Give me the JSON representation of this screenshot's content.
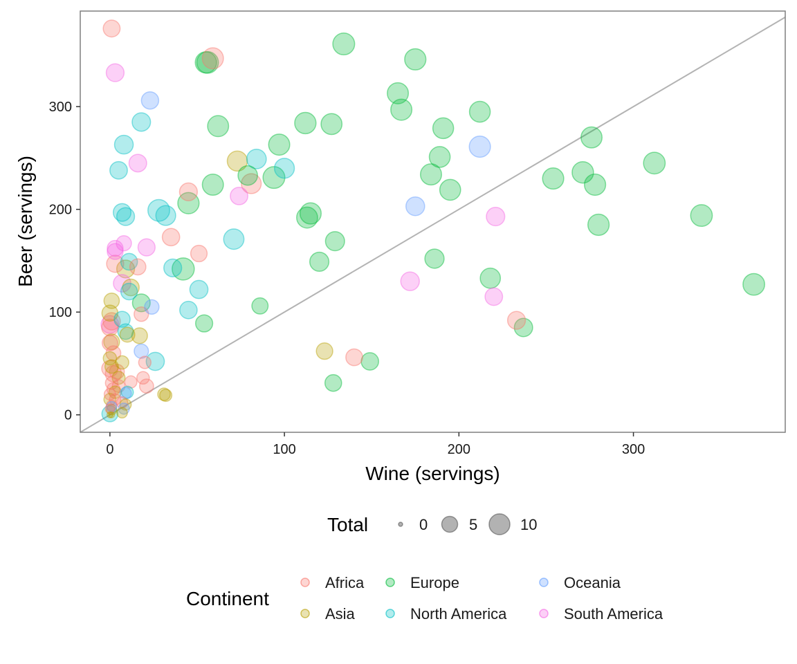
{
  "chart_data": {
    "type": "scatter",
    "title": "",
    "xlabel": "Wine (servings)",
    "ylabel": "Beer (servings)",
    "xlim": [
      -17,
      387
    ],
    "ylim": [
      -17,
      393
    ],
    "x_ticks": [
      0,
      100,
      200,
      300
    ],
    "y_ticks": [
      0,
      100,
      200,
      300
    ],
    "grid": false,
    "reference_line": {
      "slope": 1,
      "intercept": 0,
      "color": "#b3b3b3"
    },
    "legend_position": "bottom",
    "size_legend": {
      "title": "Total",
      "values": [
        0,
        5,
        10
      ]
    },
    "color_legend": {
      "title": "Continent"
    },
    "series": [
      {
        "name": "Africa",
        "color": "#F8766D",
        "points": [
          {
            "x": 1,
            "y": 376,
            "total": 5.8
          },
          {
            "x": 59,
            "y": 347,
            "total": 10.3
          },
          {
            "x": 45,
            "y": 217,
            "total": 6.7
          },
          {
            "x": 81,
            "y": 225,
            "total": 8.9
          },
          {
            "x": 35,
            "y": 173,
            "total": 6.3
          },
          {
            "x": 51,
            "y": 157,
            "total": 5.4
          },
          {
            "x": 16,
            "y": 144,
            "total": 5.1
          },
          {
            "x": 18,
            "y": 98,
            "total": 3.8
          },
          {
            "x": 233,
            "y": 92,
            "total": 6.7
          },
          {
            "x": 140,
            "y": 56,
            "total": 5.7
          },
          {
            "x": 20,
            "y": 51,
            "total": 2.4
          },
          {
            "x": 19,
            "y": 36,
            "total": 2.5
          },
          {
            "x": 21,
            "y": 28,
            "total": 3.5
          },
          {
            "x": 12,
            "y": 32,
            "total": 2.3
          },
          {
            "x": 3,
            "y": 147,
            "total": 6.0
          },
          {
            "x": 1,
            "y": 91,
            "total": 6.2
          },
          {
            "x": 0,
            "y": 85,
            "total": 5.5
          },
          {
            "x": 0,
            "y": 45,
            "total": 5.3
          },
          {
            "x": 2,
            "y": 40,
            "total": 5.2
          },
          {
            "x": 4,
            "y": 42,
            "total": 4.1
          },
          {
            "x": 1,
            "y": 31,
            "total": 2.5
          },
          {
            "x": 2,
            "y": 25,
            "total": 2.8
          },
          {
            "x": 0,
            "y": 20,
            "total": 1.9
          },
          {
            "x": 3,
            "y": 15,
            "total": 1.9
          },
          {
            "x": 1,
            "y": 9,
            "total": 1.5
          },
          {
            "x": 0,
            "y": 6,
            "total": 1.0
          },
          {
            "x": 5,
            "y": 28,
            "total": 2.6
          },
          {
            "x": 7,
            "y": 12,
            "total": 1.8
          },
          {
            "x": 2,
            "y": 60,
            "total": 4.0
          },
          {
            "x": 0,
            "y": 70,
            "total": 4.6
          }
        ]
      },
      {
        "name": "Asia",
        "color": "#B79F00",
        "points": [
          {
            "x": 73,
            "y": 247,
            "total": 9.1
          },
          {
            "x": 9,
            "y": 142,
            "total": 6.7
          },
          {
            "x": 12,
            "y": 124,
            "total": 5.6
          },
          {
            "x": 17,
            "y": 77,
            "total": 4.8
          },
          {
            "x": 10,
            "y": 78,
            "total": 4.1
          },
          {
            "x": 123,
            "y": 62,
            "total": 5.4
          },
          {
            "x": 31,
            "y": 20,
            "total": 2.5
          },
          {
            "x": 32,
            "y": 19,
            "total": 2.3
          },
          {
            "x": 1,
            "y": 111,
            "total": 4.5
          },
          {
            "x": 0,
            "y": 99,
            "total": 5.0
          },
          {
            "x": 1,
            "y": 71,
            "total": 4.8
          },
          {
            "x": 0,
            "y": 55,
            "total": 3.0
          },
          {
            "x": 7,
            "y": 51,
            "total": 3.0
          },
          {
            "x": 1,
            "y": 47,
            "total": 3.1
          },
          {
            "x": 5,
            "y": 36,
            "total": 2.7
          },
          {
            "x": 3,
            "y": 22,
            "total": 2.4
          },
          {
            "x": 0,
            "y": 15,
            "total": 2.2
          },
          {
            "x": 9,
            "y": 10,
            "total": 1.8
          },
          {
            "x": 1,
            "y": 5,
            "total": 1.4
          },
          {
            "x": 7,
            "y": 2,
            "total": 1.4
          },
          {
            "x": 1,
            "y": 0,
            "total": 0.1
          },
          {
            "x": 0,
            "y": 0,
            "total": 0.1
          }
        ]
      },
      {
        "name": "Europe",
        "color": "#00BA38",
        "points": [
          {
            "x": 134,
            "y": 361,
            "total": 11.2
          },
          {
            "x": 175,
            "y": 346,
            "total": 10.5
          },
          {
            "x": 56,
            "y": 343,
            "total": 10.9
          },
          {
            "x": 55,
            "y": 343,
            "total": 10.5
          },
          {
            "x": 165,
            "y": 313,
            "total": 10.3
          },
          {
            "x": 167,
            "y": 297,
            "total": 10.3
          },
          {
            "x": 212,
            "y": 295,
            "total": 9.9
          },
          {
            "x": 127,
            "y": 283,
            "total": 10.1
          },
          {
            "x": 112,
            "y": 284,
            "total": 10.6
          },
          {
            "x": 62,
            "y": 281,
            "total": 10.2
          },
          {
            "x": 191,
            "y": 279,
            "total": 9.9
          },
          {
            "x": 276,
            "y": 270,
            "total": 10.2
          },
          {
            "x": 97,
            "y": 263,
            "total": 10.3
          },
          {
            "x": 189,
            "y": 251,
            "total": 10.0
          },
          {
            "x": 312,
            "y": 245,
            "total": 11.0
          },
          {
            "x": 271,
            "y": 236,
            "total": 10.7
          },
          {
            "x": 184,
            "y": 234,
            "total": 10.3
          },
          {
            "x": 94,
            "y": 231,
            "total": 11.2
          },
          {
            "x": 254,
            "y": 230,
            "total": 10.4
          },
          {
            "x": 278,
            "y": 224,
            "total": 10.5
          },
          {
            "x": 59,
            "y": 224,
            "total": 10.3
          },
          {
            "x": 195,
            "y": 219,
            "total": 10.0
          },
          {
            "x": 45,
            "y": 206,
            "total": 10.5
          },
          {
            "x": 115,
            "y": 196,
            "total": 10.4
          },
          {
            "x": 113,
            "y": 192,
            "total": 10.1
          },
          {
            "x": 339,
            "y": 194,
            "total": 11.0
          },
          {
            "x": 280,
            "y": 185,
            "total": 10.5
          },
          {
            "x": 129,
            "y": 169,
            "total": 8.0
          },
          {
            "x": 186,
            "y": 152,
            "total": 8.1
          },
          {
            "x": 120,
            "y": 149,
            "total": 8.0
          },
          {
            "x": 42,
            "y": 142,
            "total": 11.6
          },
          {
            "x": 218,
            "y": 133,
            "total": 9.2
          },
          {
            "x": 369,
            "y": 127,
            "total": 11.0
          },
          {
            "x": 18,
            "y": 109,
            "total": 6.6
          },
          {
            "x": 86,
            "y": 106,
            "total": 5.2
          },
          {
            "x": 54,
            "y": 89,
            "total": 6.0
          },
          {
            "x": 237,
            "y": 85,
            "total": 7.2
          },
          {
            "x": 149,
            "y": 52,
            "total": 6.3
          },
          {
            "x": 128,
            "y": 31,
            "total": 5.6
          },
          {
            "x": 79,
            "y": 233,
            "total": 8.4
          }
        ]
      },
      {
        "name": "North America",
        "color": "#00BFC4",
        "points": [
          {
            "x": 18,
            "y": 285,
            "total": 7.3
          },
          {
            "x": 8,
            "y": 263,
            "total": 7.6
          },
          {
            "x": 84,
            "y": 249,
            "total": 8.5
          },
          {
            "x": 100,
            "y": 240,
            "total": 8.9
          },
          {
            "x": 5,
            "y": 238,
            "total": 6.4
          },
          {
            "x": 28,
            "y": 199,
            "total": 11.1
          },
          {
            "x": 32,
            "y": 194,
            "total": 8.8
          },
          {
            "x": 7,
            "y": 197,
            "total": 6.6
          },
          {
            "x": 9,
            "y": 193,
            "total": 6.7
          },
          {
            "x": 71,
            "y": 171,
            "total": 9.4
          },
          {
            "x": 11,
            "y": 149,
            "total": 5.6
          },
          {
            "x": 36,
            "y": 143,
            "total": 6.7
          },
          {
            "x": 51,
            "y": 122,
            "total": 7.0
          },
          {
            "x": 11,
            "y": 120,
            "total": 5.5
          },
          {
            "x": 45,
            "y": 102,
            "total": 6.3
          },
          {
            "x": 7,
            "y": 93,
            "total": 5.0
          },
          {
            "x": 9,
            "y": 81,
            "total": 4.6
          },
          {
            "x": 26,
            "y": 52,
            "total": 7.0
          },
          {
            "x": 10,
            "y": 22,
            "total": 2.2
          },
          {
            "x": 0,
            "y": 1,
            "total": 5.0
          }
        ]
      },
      {
        "name": "Oceania",
        "color": "#619CFF",
        "points": [
          {
            "x": 23,
            "y": 306,
            "total": 6.2
          },
          {
            "x": 212,
            "y": 261,
            "total": 10.4
          },
          {
            "x": 175,
            "y": 203,
            "total": 7.6
          },
          {
            "x": 24,
            "y": 105,
            "total": 3.8
          },
          {
            "x": 18,
            "y": 62,
            "total": 3.7
          },
          {
            "x": 8,
            "y": 6,
            "total": 1.7
          },
          {
            "x": 9,
            "y": 21,
            "total": 1.9
          },
          {
            "x": 1,
            "y": 8,
            "total": 1.3
          }
        ]
      },
      {
        "name": "South America",
        "color": "#F564E3",
        "points": [
          {
            "x": 3,
            "y": 333,
            "total": 6.7
          },
          {
            "x": 16,
            "y": 245,
            "total": 6.5
          },
          {
            "x": 74,
            "y": 213,
            "total": 6.4
          },
          {
            "x": 221,
            "y": 193,
            "total": 7.3
          },
          {
            "x": 3,
            "y": 162,
            "total": 4.9
          },
          {
            "x": 8,
            "y": 167,
            "total": 4.3
          },
          {
            "x": 3,
            "y": 159,
            "total": 4.9
          },
          {
            "x": 21,
            "y": 163,
            "total": 6.0
          },
          {
            "x": 172,
            "y": 130,
            "total": 7.5
          },
          {
            "x": 7,
            "y": 128,
            "total": 6.3
          },
          {
            "x": 220,
            "y": 115,
            "total": 6.4
          },
          {
            "x": 0,
            "y": 88,
            "total": 6.6
          }
        ]
      }
    ]
  }
}
